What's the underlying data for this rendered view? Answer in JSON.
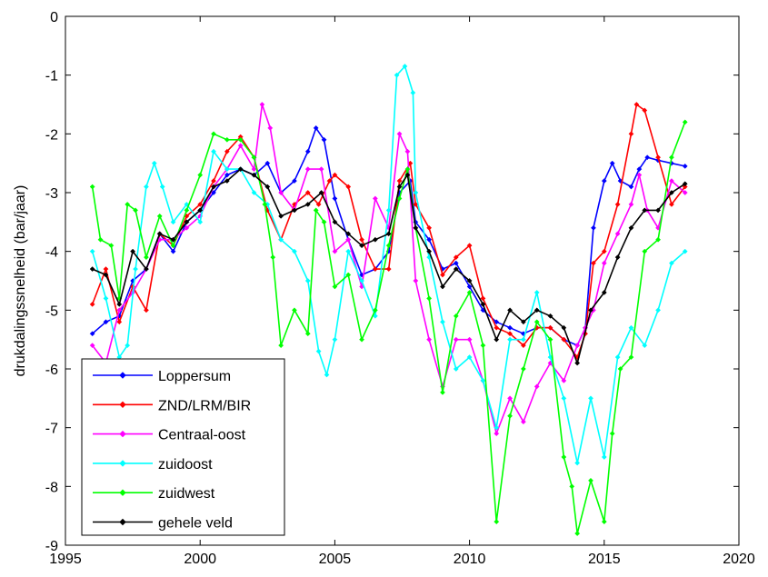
{
  "chart_data": {
    "type": "line",
    "title": "",
    "xlabel": "",
    "ylabel": "drukdalingssnelheid (bar/jaar)",
    "xlim": [
      1995,
      2020
    ],
    "ylim": [
      -9,
      0
    ],
    "xticks": [
      1995,
      2000,
      2005,
      2010,
      2015,
      2020
    ],
    "yticks": [
      0,
      -1,
      -2,
      -3,
      -4,
      -5,
      -6,
      -7,
      -8,
      -9
    ],
    "grid": false,
    "legend_position": "bottom-left",
    "marker": "diamond",
    "series": [
      {
        "name": "Loppersum",
        "color": "#0000FF",
        "points": [
          [
            1996.0,
            -5.4
          ],
          [
            1996.5,
            -5.2
          ],
          [
            1997.0,
            -5.1
          ],
          [
            1997.5,
            -4.5
          ],
          [
            1998.0,
            -4.3
          ],
          [
            1998.5,
            -3.7
          ],
          [
            1999.0,
            -4.0
          ],
          [
            1999.5,
            -3.5
          ],
          [
            2000.0,
            -3.3
          ],
          [
            2000.5,
            -3.0
          ],
          [
            2001.0,
            -2.7
          ],
          [
            2001.5,
            -2.6
          ],
          [
            2002.0,
            -2.7
          ],
          [
            2002.5,
            -2.5
          ],
          [
            2003.0,
            -3.0
          ],
          [
            2003.5,
            -2.8
          ],
          [
            2004.0,
            -2.3
          ],
          [
            2004.3,
            -1.9
          ],
          [
            2004.6,
            -2.1
          ],
          [
            2005.0,
            -3.1
          ],
          [
            2005.5,
            -3.8
          ],
          [
            2006.0,
            -4.4
          ],
          [
            2006.5,
            -4.3
          ],
          [
            2007.0,
            -4.0
          ],
          [
            2007.4,
            -3.0
          ],
          [
            2007.8,
            -2.8
          ],
          [
            2008.0,
            -3.5
          ],
          [
            2008.5,
            -3.8
          ],
          [
            2009.0,
            -4.3
          ],
          [
            2009.5,
            -4.2
          ],
          [
            2010.0,
            -4.6
          ],
          [
            2010.5,
            -5.0
          ],
          [
            2011.0,
            -5.2
          ],
          [
            2011.5,
            -5.3
          ],
          [
            2012.0,
            -5.4
          ],
          [
            2012.5,
            -5.3
          ],
          [
            2013.0,
            -5.3
          ],
          [
            2013.5,
            -5.5
          ],
          [
            2014.0,
            -5.6
          ],
          [
            2014.3,
            -5.3
          ],
          [
            2014.6,
            -3.6
          ],
          [
            2015.0,
            -2.8
          ],
          [
            2015.3,
            -2.5
          ],
          [
            2015.6,
            -2.8
          ],
          [
            2016.0,
            -2.9
          ],
          [
            2016.3,
            -2.6
          ],
          [
            2016.6,
            -2.4
          ],
          [
            2017.0,
            -2.45
          ],
          [
            2017.5,
            -2.5
          ],
          [
            2018.0,
            -2.55
          ]
        ]
      },
      {
        "name": "ZND/LRM/BIR",
        "color": "#FF0000",
        "points": [
          [
            1996.0,
            -4.9
          ],
          [
            1996.5,
            -4.3
          ],
          [
            1997.0,
            -5.2
          ],
          [
            1997.5,
            -4.6
          ],
          [
            1998.0,
            -5.0
          ],
          [
            1998.5,
            -3.7
          ],
          [
            1999.0,
            -3.9
          ],
          [
            1999.5,
            -3.4
          ],
          [
            2000.0,
            -3.2
          ],
          [
            2000.5,
            -2.8
          ],
          [
            2001.0,
            -2.3
          ],
          [
            2001.5,
            -2.05
          ],
          [
            2002.0,
            -2.4
          ],
          [
            2002.5,
            -3.3
          ],
          [
            2003.0,
            -3.8
          ],
          [
            2003.5,
            -3.2
          ],
          [
            2004.0,
            -3.0
          ],
          [
            2004.4,
            -3.2
          ],
          [
            2004.8,
            -2.8
          ],
          [
            2005.0,
            -2.7
          ],
          [
            2005.5,
            -2.9
          ],
          [
            2006.0,
            -3.8
          ],
          [
            2006.5,
            -4.3
          ],
          [
            2007.0,
            -4.3
          ],
          [
            2007.4,
            -2.8
          ],
          [
            2007.8,
            -2.5
          ],
          [
            2008.0,
            -3.2
          ],
          [
            2008.5,
            -3.6
          ],
          [
            2009.0,
            -4.4
          ],
          [
            2009.5,
            -4.1
          ],
          [
            2010.0,
            -3.9
          ],
          [
            2010.5,
            -4.8
          ],
          [
            2011.0,
            -5.3
          ],
          [
            2011.5,
            -5.4
          ],
          [
            2012.0,
            -5.6
          ],
          [
            2012.5,
            -5.3
          ],
          [
            2013.0,
            -5.3
          ],
          [
            2013.5,
            -5.5
          ],
          [
            2014.0,
            -5.8
          ],
          [
            2014.3,
            -5.4
          ],
          [
            2014.6,
            -4.2
          ],
          [
            2015.0,
            -4.0
          ],
          [
            2015.5,
            -3.2
          ],
          [
            2016.0,
            -2.0
          ],
          [
            2016.2,
            -1.5
          ],
          [
            2016.5,
            -1.6
          ],
          [
            2017.0,
            -2.4
          ],
          [
            2017.5,
            -3.2
          ],
          [
            2018.0,
            -2.9
          ]
        ]
      },
      {
        "name": "Centraal-oost",
        "color": "#FF00FF",
        "points": [
          [
            1996.0,
            -5.6
          ],
          [
            1996.5,
            -5.9
          ],
          [
            1997.0,
            -5.0
          ],
          [
            1997.5,
            -4.7
          ],
          [
            1998.0,
            -4.3
          ],
          [
            1998.5,
            -3.8
          ],
          [
            1999.0,
            -3.8
          ],
          [
            1999.5,
            -3.6
          ],
          [
            2000.0,
            -3.4
          ],
          [
            2000.5,
            -2.9
          ],
          [
            2001.0,
            -2.6
          ],
          [
            2001.5,
            -2.2
          ],
          [
            2002.0,
            -2.6
          ],
          [
            2002.3,
            -1.5
          ],
          [
            2002.6,
            -1.9
          ],
          [
            2003.0,
            -3.0
          ],
          [
            2003.5,
            -3.3
          ],
          [
            2004.0,
            -2.6
          ],
          [
            2004.5,
            -2.6
          ],
          [
            2005.0,
            -4.0
          ],
          [
            2005.5,
            -3.8
          ],
          [
            2006.0,
            -4.6
          ],
          [
            2006.5,
            -3.1
          ],
          [
            2007.0,
            -3.6
          ],
          [
            2007.4,
            -2.0
          ],
          [
            2007.7,
            -2.3
          ],
          [
            2008.0,
            -4.5
          ],
          [
            2008.5,
            -5.5
          ],
          [
            2009.0,
            -6.3
          ],
          [
            2009.5,
            -5.5
          ],
          [
            2010.0,
            -5.5
          ],
          [
            2010.5,
            -6.2
          ],
          [
            2011.0,
            -7.1
          ],
          [
            2011.5,
            -6.5
          ],
          [
            2012.0,
            -6.9
          ],
          [
            2012.5,
            -6.3
          ],
          [
            2013.0,
            -5.9
          ],
          [
            2013.5,
            -6.2
          ],
          [
            2014.0,
            -5.6
          ],
          [
            2014.3,
            -5.3
          ],
          [
            2014.6,
            -5.0
          ],
          [
            2015.0,
            -4.2
          ],
          [
            2015.5,
            -3.7
          ],
          [
            2016.0,
            -3.2
          ],
          [
            2016.3,
            -2.7
          ],
          [
            2016.6,
            -3.3
          ],
          [
            2017.0,
            -3.6
          ],
          [
            2017.5,
            -2.8
          ],
          [
            2018.0,
            -3.0
          ]
        ]
      },
      {
        "name": "zuidoost",
        "color": "#00FFFF",
        "points": [
          [
            1996.0,
            -4.0
          ],
          [
            1996.5,
            -4.8
          ],
          [
            1997.0,
            -5.8
          ],
          [
            1997.3,
            -5.6
          ],
          [
            1997.6,
            -4.3
          ],
          [
            1998.0,
            -2.9
          ],
          [
            1998.3,
            -2.5
          ],
          [
            1998.6,
            -2.9
          ],
          [
            1999.0,
            -3.5
          ],
          [
            1999.5,
            -3.2
          ],
          [
            2000.0,
            -3.5
          ],
          [
            2000.5,
            -2.3
          ],
          [
            2001.0,
            -2.6
          ],
          [
            2001.5,
            -2.6
          ],
          [
            2002.0,
            -3.0
          ],
          [
            2002.5,
            -3.2
          ],
          [
            2003.0,
            -3.8
          ],
          [
            2003.5,
            -4.0
          ],
          [
            2004.0,
            -4.5
          ],
          [
            2004.4,
            -5.7
          ],
          [
            2004.7,
            -6.1
          ],
          [
            2005.0,
            -5.5
          ],
          [
            2005.5,
            -4.0
          ],
          [
            2006.0,
            -4.5
          ],
          [
            2006.5,
            -5.1
          ],
          [
            2007.0,
            -3.3
          ],
          [
            2007.3,
            -1.0
          ],
          [
            2007.6,
            -0.85
          ],
          [
            2007.9,
            -1.3
          ],
          [
            2008.0,
            -3.0
          ],
          [
            2008.5,
            -4.1
          ],
          [
            2009.0,
            -5.2
          ],
          [
            2009.5,
            -6.0
          ],
          [
            2010.0,
            -5.8
          ],
          [
            2010.5,
            -6.2
          ],
          [
            2011.0,
            -7.0
          ],
          [
            2011.5,
            -5.5
          ],
          [
            2012.0,
            -5.5
          ],
          [
            2012.5,
            -4.7
          ],
          [
            2013.0,
            -5.8
          ],
          [
            2013.5,
            -6.5
          ],
          [
            2014.0,
            -7.6
          ],
          [
            2014.5,
            -6.5
          ],
          [
            2015.0,
            -7.5
          ],
          [
            2015.5,
            -5.8
          ],
          [
            2016.0,
            -5.3
          ],
          [
            2016.5,
            -5.6
          ],
          [
            2017.0,
            -5.0
          ],
          [
            2017.5,
            -4.2
          ],
          [
            2018.0,
            -4.0
          ]
        ]
      },
      {
        "name": "zuidwest",
        "color": "#00FF00",
        "points": [
          [
            1996.0,
            -2.9
          ],
          [
            1996.3,
            -3.8
          ],
          [
            1996.7,
            -3.9
          ],
          [
            1997.0,
            -4.8
          ],
          [
            1997.3,
            -3.2
          ],
          [
            1997.6,
            -3.3
          ],
          [
            1998.0,
            -4.1
          ],
          [
            1998.5,
            -3.4
          ],
          [
            1999.0,
            -3.9
          ],
          [
            1999.5,
            -3.3
          ],
          [
            2000.0,
            -2.7
          ],
          [
            2000.5,
            -2.0
          ],
          [
            2001.0,
            -2.1
          ],
          [
            2001.5,
            -2.1
          ],
          [
            2002.0,
            -2.4
          ],
          [
            2002.4,
            -3.2
          ],
          [
            2002.7,
            -4.1
          ],
          [
            2003.0,
            -5.6
          ],
          [
            2003.5,
            -5.0
          ],
          [
            2004.0,
            -5.4
          ],
          [
            2004.3,
            -3.3
          ],
          [
            2004.6,
            -3.5
          ],
          [
            2005.0,
            -4.6
          ],
          [
            2005.5,
            -4.4
          ],
          [
            2006.0,
            -5.5
          ],
          [
            2006.5,
            -5.0
          ],
          [
            2007.0,
            -3.9
          ],
          [
            2007.4,
            -3.1
          ],
          [
            2007.7,
            -2.6
          ],
          [
            2008.0,
            -3.6
          ],
          [
            2008.5,
            -4.8
          ],
          [
            2009.0,
            -6.4
          ],
          [
            2009.5,
            -5.1
          ],
          [
            2010.0,
            -4.7
          ],
          [
            2010.5,
            -5.6
          ],
          [
            2011.0,
            -8.6
          ],
          [
            2011.5,
            -6.8
          ],
          [
            2012.0,
            -6.0
          ],
          [
            2012.5,
            -5.2
          ],
          [
            2013.0,
            -5.5
          ],
          [
            2013.5,
            -7.5
          ],
          [
            2013.8,
            -8.0
          ],
          [
            2014.0,
            -8.8
          ],
          [
            2014.5,
            -7.9
          ],
          [
            2015.0,
            -8.6
          ],
          [
            2015.3,
            -7.1
          ],
          [
            2015.6,
            -6.0
          ],
          [
            2016.0,
            -5.8
          ],
          [
            2016.5,
            -4.0
          ],
          [
            2017.0,
            -3.8
          ],
          [
            2017.5,
            -2.4
          ],
          [
            2018.0,
            -1.8
          ]
        ]
      },
      {
        "name": "gehele veld",
        "color": "#000000",
        "points": [
          [
            1996.0,
            -4.3
          ],
          [
            1996.5,
            -4.4
          ],
          [
            1997.0,
            -4.9
          ],
          [
            1997.5,
            -4.0
          ],
          [
            1998.0,
            -4.3
          ],
          [
            1998.5,
            -3.7
          ],
          [
            1999.0,
            -3.8
          ],
          [
            1999.5,
            -3.5
          ],
          [
            2000.0,
            -3.3
          ],
          [
            2000.5,
            -2.9
          ],
          [
            2001.0,
            -2.8
          ],
          [
            2001.5,
            -2.6
          ],
          [
            2002.0,
            -2.7
          ],
          [
            2002.5,
            -2.9
          ],
          [
            2003.0,
            -3.4
          ],
          [
            2003.5,
            -3.3
          ],
          [
            2004.0,
            -3.2
          ],
          [
            2004.5,
            -3.0
          ],
          [
            2005.0,
            -3.5
          ],
          [
            2005.5,
            -3.7
          ],
          [
            2006.0,
            -3.9
          ],
          [
            2006.5,
            -3.8
          ],
          [
            2007.0,
            -3.7
          ],
          [
            2007.4,
            -2.9
          ],
          [
            2007.7,
            -2.7
          ],
          [
            2008.0,
            -3.6
          ],
          [
            2008.5,
            -4.0
          ],
          [
            2009.0,
            -4.6
          ],
          [
            2009.5,
            -4.3
          ],
          [
            2010.0,
            -4.5
          ],
          [
            2010.5,
            -4.9
          ],
          [
            2011.0,
            -5.5
          ],
          [
            2011.5,
            -5.0
          ],
          [
            2012.0,
            -5.2
          ],
          [
            2012.5,
            -5.0
          ],
          [
            2013.0,
            -5.1
          ],
          [
            2013.5,
            -5.3
          ],
          [
            2014.0,
            -5.9
          ],
          [
            2014.5,
            -5.0
          ],
          [
            2015.0,
            -4.7
          ],
          [
            2015.5,
            -4.1
          ],
          [
            2016.0,
            -3.6
          ],
          [
            2016.5,
            -3.3
          ],
          [
            2017.0,
            -3.3
          ],
          [
            2017.5,
            -3.0
          ],
          [
            2018.0,
            -2.85
          ]
        ]
      }
    ]
  }
}
